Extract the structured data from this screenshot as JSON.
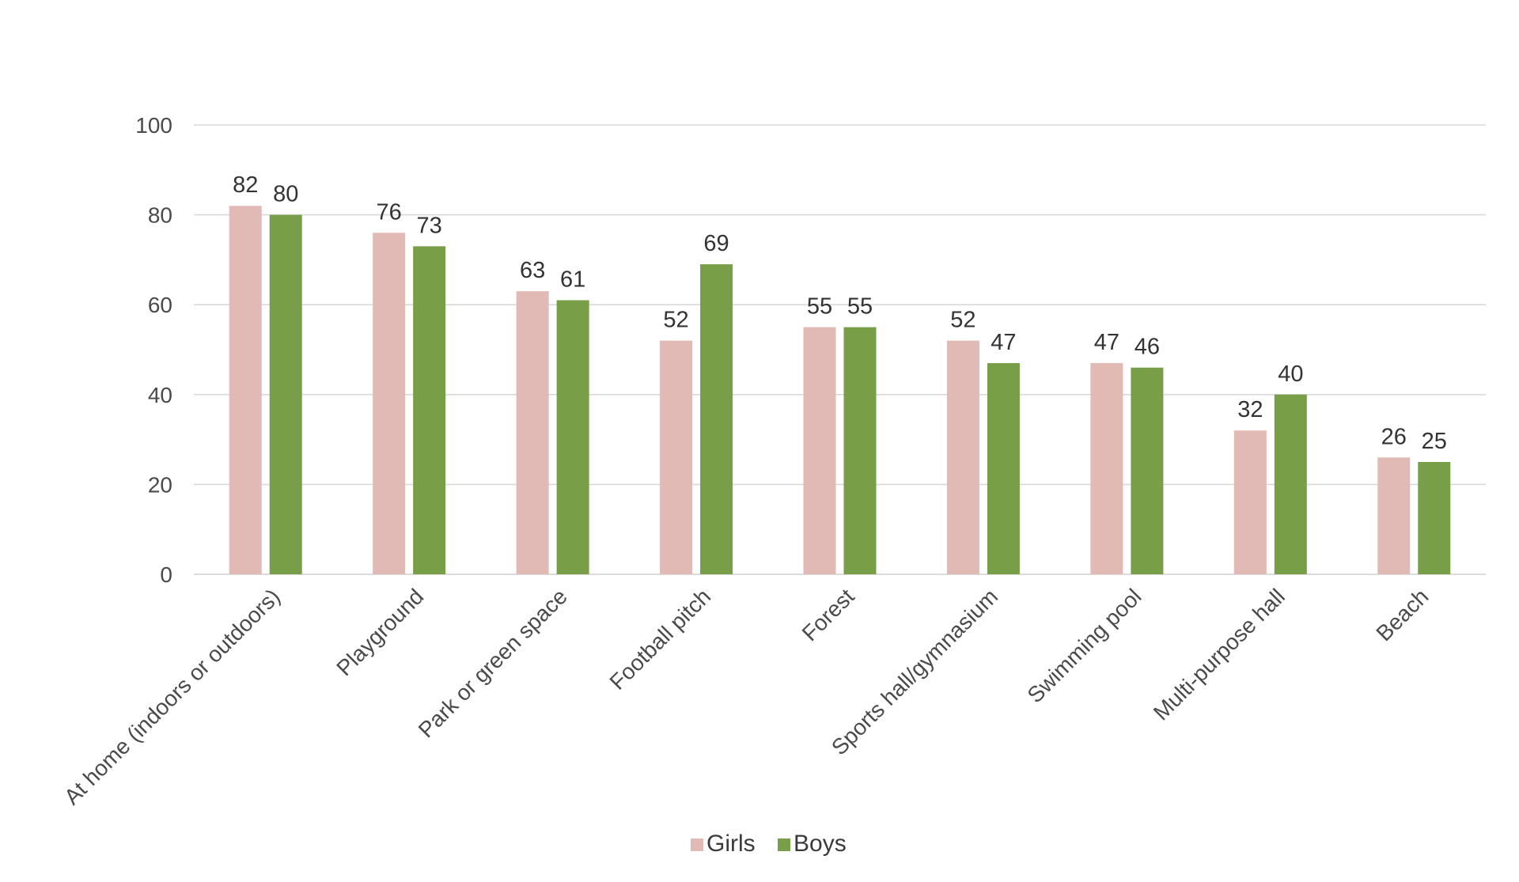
{
  "chart_data": {
    "type": "bar",
    "categories": [
      "At home (indoors or outdoors)",
      "Playground",
      "Park or green space",
      "Football pitch",
      "Forest",
      "Sports hall/gymnasium",
      "Swimming pool",
      "Multi-purpose hall",
      "Beach"
    ],
    "series": [
      {
        "name": "Girls",
        "color": "#e2bab5",
        "values": [
          82,
          76,
          63,
          52,
          55,
          52,
          47,
          32,
          26
        ]
      },
      {
        "name": "Boys",
        "color": "#789e48",
        "values": [
          80,
          73,
          61,
          69,
          55,
          47,
          46,
          40,
          25
        ]
      }
    ],
    "ylim": [
      0,
      100
    ],
    "yticks": [
      0,
      20,
      40,
      60,
      80,
      100
    ],
    "grid": true,
    "legend_position": "bottom-center",
    "title": "",
    "xlabel": "",
    "ylabel": ""
  }
}
